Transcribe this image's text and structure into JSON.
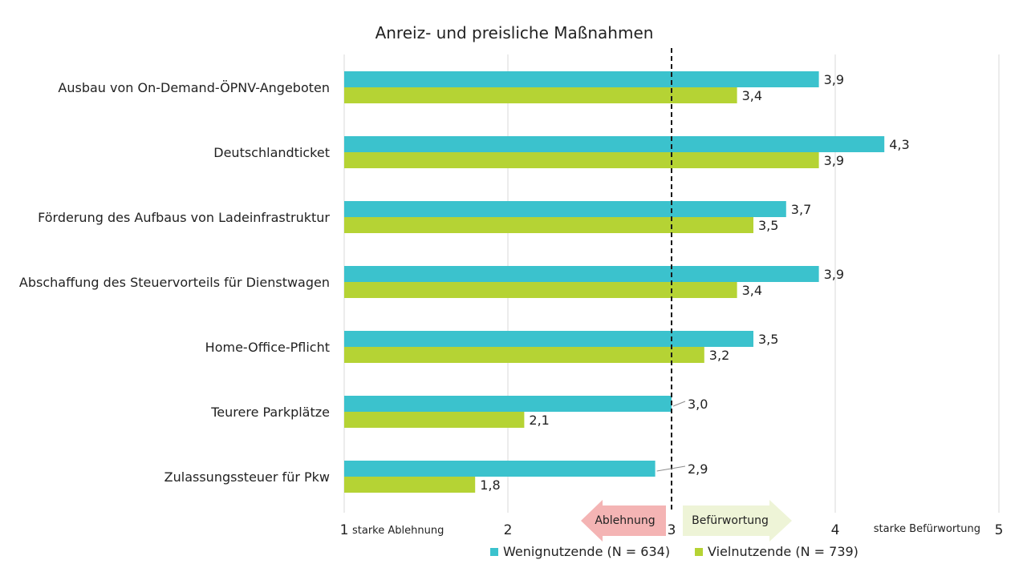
{
  "colors": {
    "weniger": "#3bc2cd",
    "viel": "#b5d334",
    "gridline": "#d9d9d9",
    "refline": "#1a1a1a",
    "ablehnung_arrow": "#f4b4b4",
    "befuerwortung_arrow": "#eef4d7"
  },
  "chart_data": {
    "type": "bar",
    "orientation": "horizontal",
    "title": "Anreiz- und preisliche Maßnahmen",
    "categories": [
      "Ausbau von On-Demand-ÖPNV-Angeboten",
      "Deutschlandticket",
      "Förderung des Aufbaus von Ladeinfrastruktur",
      "Abschaffung des Steuervorteils für Dienstwagen",
      "Home-Office-Pflicht",
      "Teurere Parkplätze",
      "Zulassungssteuer für Pkw"
    ],
    "series": [
      {
        "name": "Wenignutzende (N = 634)",
        "values": [
          3.9,
          4.3,
          3.7,
          3.9,
          3.5,
          3.0,
          2.9
        ],
        "labels": [
          "3,9",
          "4,3",
          "3,7",
          "3,9",
          "3,5",
          "3,0",
          "2,9"
        ]
      },
      {
        "name": "Vielnutzende (N = 739)",
        "values": [
          3.4,
          3.9,
          3.5,
          3.4,
          3.2,
          2.1,
          1.8
        ],
        "labels": [
          "3,4",
          "3,9",
          "3,5",
          "3,4",
          "3,2",
          "2,1",
          "1,8"
        ]
      }
    ],
    "xlim": [
      1,
      5
    ],
    "xticks": [
      "1",
      "2",
      "3",
      "4",
      "5"
    ],
    "reference_line": 3,
    "scale_labels": {
      "low": "starke Ablehnung",
      "high": "starke Befürwortung"
    },
    "arrow_labels": {
      "left": "Ablehnung",
      "right": "Befürwortung"
    },
    "grid": true,
    "legend_position": "bottom"
  }
}
